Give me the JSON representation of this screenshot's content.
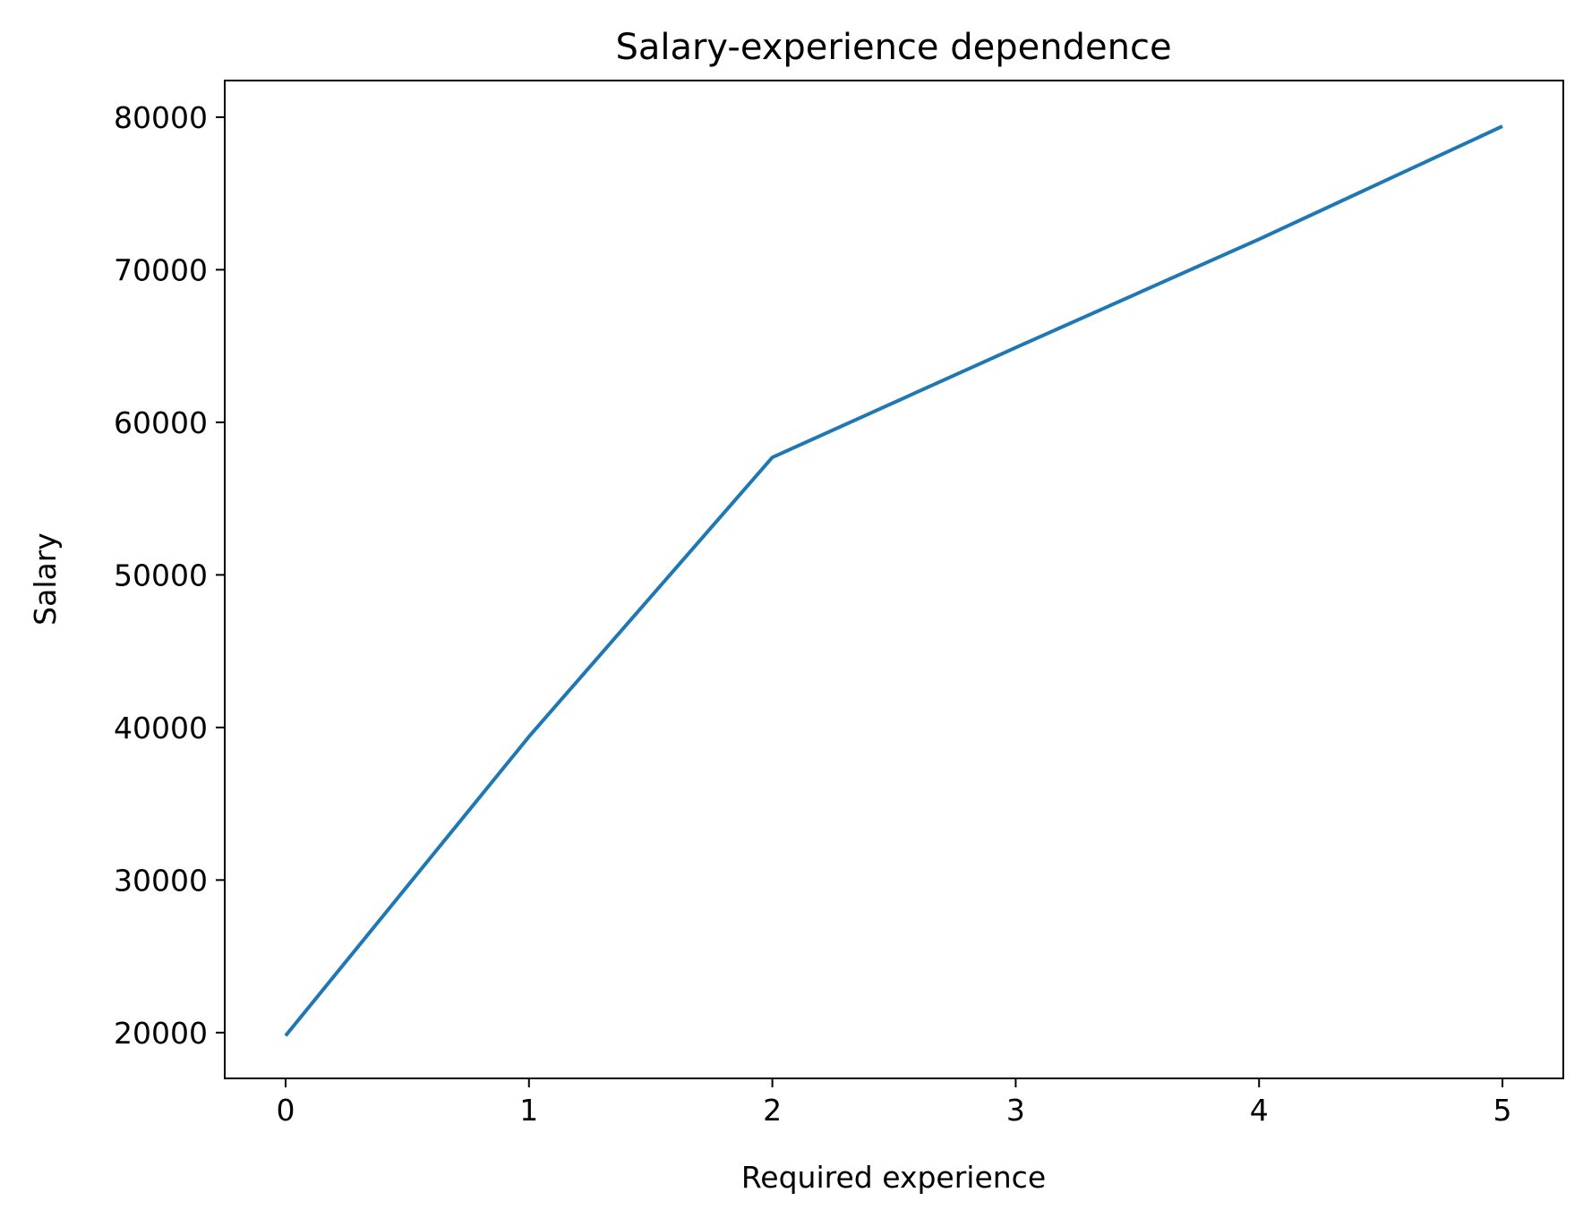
{
  "chart_data": {
    "type": "line",
    "title": "Salary-experience dependence",
    "xlabel": "Required experience",
    "ylabel": "Salary",
    "xlim": [
      -0.25,
      5.25
    ],
    "ylim": [
      17000,
      82400
    ],
    "x_ticks": [
      0,
      1,
      2,
      3,
      4,
      5
    ],
    "y_ticks": [
      20000,
      30000,
      40000,
      50000,
      60000,
      70000,
      80000
    ],
    "grid": false,
    "series": [
      {
        "color": "#1f77b4",
        "x": [
          0,
          1,
          2,
          3,
          4,
          5
        ],
        "y": [
          19800,
          39400,
          57700,
          64900,
          72000,
          79400
        ]
      }
    ]
  }
}
